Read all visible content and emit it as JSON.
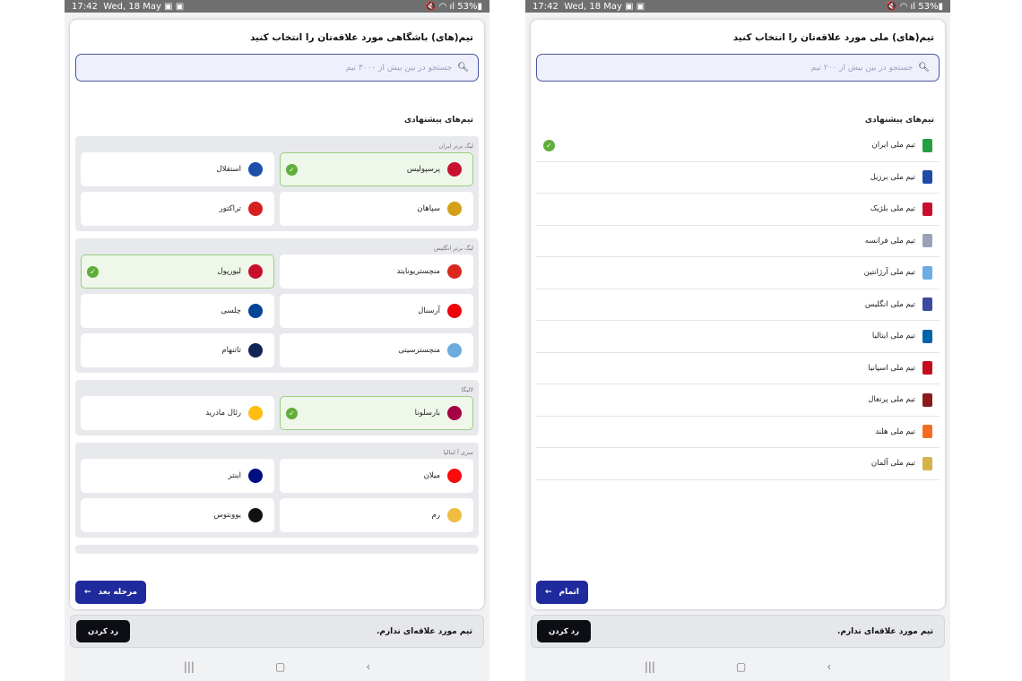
{
  "status": {
    "time": "17:42",
    "date": "Wed, 18 May",
    "battery": "53%",
    "icons": "mute wifi signal"
  },
  "clubs": {
    "title": "تیم(های) باشگاهی مورد علاقه‌تان را انتخاب کنید",
    "search_placeholder": "جستجو در بین بیش از ۳۰۰۰ تیم",
    "suggested": "تیم‌های پیشنهادی",
    "groups": [
      {
        "name": "لیگ برتر ایران",
        "teams": [
          {
            "name": "پرسپولیس",
            "selected": true,
            "color": "#c8102e"
          },
          {
            "name": "استقلال",
            "selected": false,
            "color": "#1e4fa8"
          },
          {
            "name": "سپاهان",
            "selected": false,
            "color": "#d4a017"
          },
          {
            "name": "تراکتور",
            "selected": false,
            "color": "#d62020"
          }
        ]
      },
      {
        "name": "لیگ برتر انگلیس",
        "teams": [
          {
            "name": "منچستریونایتد",
            "selected": false,
            "color": "#da291c"
          },
          {
            "name": "لیورپول",
            "selected": true,
            "color": "#c8102e"
          },
          {
            "name": "آرسنال",
            "selected": false,
            "color": "#ef0107"
          },
          {
            "name": "چلسی",
            "selected": false,
            "color": "#034694"
          },
          {
            "name": "منچسترسیتی",
            "selected": false,
            "color": "#6cabdd"
          },
          {
            "name": "تاتنهام",
            "selected": false,
            "color": "#132257"
          }
        ]
      },
      {
        "name": "لالیگا",
        "teams": [
          {
            "name": "بارسلونا",
            "selected": true,
            "color": "#a50044"
          },
          {
            "name": "رئال مادرید",
            "selected": false,
            "color": "#febe10"
          }
        ]
      },
      {
        "name": "سری آ ایتالیا",
        "teams": [
          {
            "name": "میلان",
            "selected": false,
            "color": "#fb090b"
          },
          {
            "name": "اینتر",
            "selected": false,
            "color": "#010e80"
          },
          {
            "name": "رم",
            "selected": false,
            "color": "#f0bc42"
          },
          {
            "name": "یوونتوس",
            "selected": false,
            "color": "#111111"
          }
        ]
      }
    ],
    "next_label": "مرحله بعد"
  },
  "national": {
    "title": "تیم(های) ملی مورد علاقه‌تان را انتخاب کنید",
    "search_placeholder": "جستجو در بین بیش از ۲۰۰ تیم",
    "suggested": "تیم‌های پیشنهادی",
    "teams": [
      {
        "name": "تیم ملی ایران",
        "selected": true,
        "color": "#239f40"
      },
      {
        "name": "تیم ملی برزیل",
        "selected": false,
        "color": "#1f4aa8"
      },
      {
        "name": "تیم ملی بلژیک",
        "selected": false,
        "color": "#c8102e"
      },
      {
        "name": "تیم ملی فرانسه",
        "selected": false,
        "color": "#9aa3b5"
      },
      {
        "name": "تیم ملی آرژانتین",
        "selected": false,
        "color": "#6cace4"
      },
      {
        "name": "تیم ملی انگلیس",
        "selected": false,
        "color": "#3a4aa0"
      },
      {
        "name": "تیم ملی ایتالیا",
        "selected": false,
        "color": "#0064aa"
      },
      {
        "name": "تیم ملی اسپانیا",
        "selected": false,
        "color": "#c60b1e"
      },
      {
        "name": "تیم ملی پرتغال",
        "selected": false,
        "color": "#8b1a1a"
      },
      {
        "name": "تیم ملی هلند",
        "selected": false,
        "color": "#f36c21"
      },
      {
        "name": "تیم ملی آلمان",
        "selected": false,
        "color": "#d4b34a"
      }
    ],
    "finish_label": "اتمام"
  },
  "footer": {
    "no_team": "تیم مورد علاقه‌ای ندارم.",
    "reject_label": "رد کردن"
  },
  "colors": {
    "primary": "#1f2a9c",
    "selected_bg": "#eef7ea",
    "check": "#5fae3a"
  }
}
